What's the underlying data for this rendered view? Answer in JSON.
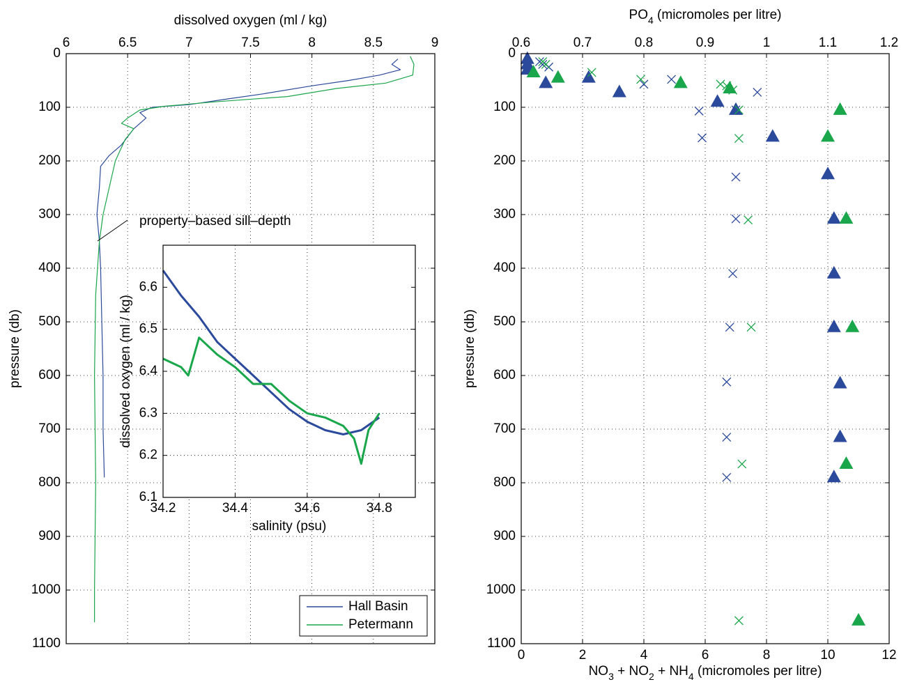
{
  "chart_data": [
    {
      "type": "line",
      "x_label": [
        "dissolved oxygen (ml / kg)"
      ],
      "y_label": "pressure (db)",
      "xlim": [
        6,
        9
      ],
      "xticks": [
        6,
        6.5,
        7,
        7.5,
        8,
        8.5,
        9
      ],
      "x_axis_side": "top",
      "ylim": [
        0,
        1100
      ],
      "y_reversed": true,
      "yticks": [
        0,
        100,
        200,
        300,
        400,
        500,
        600,
        700,
        800,
        900,
        1000,
        1100
      ],
      "grid": true,
      "legend": "lower right",
      "annotation": "property–based sill–depth",
      "line_width": 1.2,
      "series": [
        {
          "name": "Hall Basin",
          "color": "#2b4a9b",
          "x": [
            8.7,
            8.65,
            8.72,
            8.55,
            8.3,
            8.0,
            7.6,
            7.3,
            7.0,
            6.7,
            6.6,
            6.65,
            6.55,
            6.45,
            6.35,
            6.28,
            6.27,
            6.25,
            6.27,
            6.28,
            6.29,
            6.3,
            6.3,
            6.31
          ],
          "y": [
            10,
            20,
            30,
            40,
            50,
            60,
            75,
            85,
            95,
            100,
            110,
            120,
            140,
            170,
            190,
            210,
            250,
            300,
            350,
            400,
            500,
            600,
            700,
            790
          ]
        },
        {
          "name": "Petermann",
          "color": "#1aa64a",
          "x": [
            8.8,
            8.83,
            8.82,
            8.6,
            8.2,
            7.8,
            7.2,
            6.8,
            6.6,
            6.5,
            6.45,
            6.55,
            6.48,
            6.4,
            6.35,
            6.3,
            6.27,
            6.24,
            6.23,
            6.24,
            6.23,
            6.23
          ],
          "y": [
            5,
            20,
            40,
            55,
            65,
            80,
            90,
            98,
            105,
            120,
            130,
            140,
            160,
            200,
            250,
            300,
            350,
            450,
            600,
            800,
            1000,
            1060
          ]
        }
      ]
    },
    {
      "type": "line",
      "x_label": [
        "salinity (psu)"
      ],
      "y_label": "dissolved oxygen (ml / kg)",
      "xlim": [
        34.2,
        34.9
      ],
      "xticks": [
        34.2,
        34.4,
        34.6,
        34.8
      ],
      "x_axis_side": "bottom",
      "ylim": [
        6.1,
        6.7
      ],
      "yticks": [
        6.1,
        6.2,
        6.3,
        6.4,
        6.5,
        6.6
      ],
      "grid": true,
      "line_width": 3,
      "series": [
        {
          "color": "#2b4a9b",
          "x": [
            34.2,
            34.25,
            34.3,
            34.35,
            34.4,
            34.45,
            34.5,
            34.55,
            34.6,
            34.65,
            34.7,
            34.75,
            34.8
          ],
          "y": [
            6.64,
            6.58,
            6.53,
            6.47,
            6.43,
            6.39,
            6.35,
            6.31,
            6.28,
            6.26,
            6.25,
            6.26,
            6.29
          ]
        },
        {
          "color": "#1aa64a",
          "x": [
            34.2,
            34.25,
            34.27,
            34.3,
            34.35,
            34.4,
            34.45,
            34.5,
            34.55,
            34.6,
            34.65,
            34.7,
            34.73,
            34.75,
            34.77,
            34.8
          ],
          "y": [
            6.43,
            6.41,
            6.39,
            6.48,
            6.44,
            6.41,
            6.37,
            6.37,
            6.33,
            6.3,
            6.29,
            6.27,
            6.24,
            6.18,
            6.26,
            6.3
          ]
        }
      ]
    },
    {
      "type": "scatter",
      "x_label": [
        "PO",
        "4",
        " (micromoles per litre)"
      ],
      "x2_label": [
        "NO",
        "3",
        " + NO",
        "2",
        " + NH",
        "4",
        " (micromoles per litre)"
      ],
      "y_label": "pressure (db)",
      "x_axis_side": "top",
      "xlim": [
        0.6,
        1.2
      ],
      "xticks": [
        0.6,
        0.7,
        0.8,
        0.9,
        1,
        1.1,
        1.2
      ],
      "x2lim": [
        0,
        12
      ],
      "x2ticks": [
        0,
        2,
        4,
        6,
        8,
        10,
        12
      ],
      "ylim": [
        0,
        1100
      ],
      "y_reversed": true,
      "yticks": [
        0,
        100,
        200,
        300,
        400,
        500,
        600,
        700,
        800,
        900,
        1000,
        1100
      ],
      "grid": true,
      "series": [
        {
          "color": "#2b4a9b",
          "marker": "triangle",
          "axis": "x",
          "x": [
            0.61,
            0.61,
            0.61,
            0.64,
            0.71,
            0.76,
            0.92,
            0.95,
            1.01,
            1.1,
            1.11,
            1.11,
            1.11,
            1.12,
            1.12,
            1.11
          ],
          "y": [
            10,
            20,
            30,
            55,
            45,
            72,
            90,
            105,
            155,
            225,
            308,
            410,
            510,
            615,
            715,
            790
          ]
        },
        {
          "color": "#1aa64a",
          "marker": "triangle",
          "axis": "x",
          "x": [
            0.62,
            0.66,
            0.86,
            0.94,
            1.12,
            1.1,
            1.13,
            1.14,
            1.13,
            1.15
          ],
          "y": [
            35,
            45,
            55,
            65,
            105,
            155,
            308,
            510,
            765,
            1057
          ]
        },
        {
          "color": "#2b4a9b",
          "marker": "cross",
          "axis": "x2",
          "x": [
            0.6,
            0.7,
            0.9,
            4.0,
            4.9,
            5.8,
            5.9,
            6.7,
            6.7,
            6.7,
            6.8,
            6.9,
            7.0,
            7.0,
            7.0,
            7.7
          ],
          "y": [
            15,
            20,
            25,
            57,
            48,
            107,
            157,
            612,
            715,
            790,
            510,
            410,
            308,
            230,
            105,
            72
          ]
        },
        {
          "color": "#1aa64a",
          "marker": "cross",
          "axis": "x2",
          "x": [
            0.7,
            0.8,
            2.3,
            3.9,
            6.5,
            6.7,
            6.9,
            7.1,
            7.1,
            7.4,
            7.5,
            7.2,
            7.1
          ],
          "y": [
            15,
            20,
            35,
            48,
            57,
            60,
            68,
            105,
            158,
            310,
            510,
            765,
            1057
          ]
        }
      ]
    }
  ]
}
